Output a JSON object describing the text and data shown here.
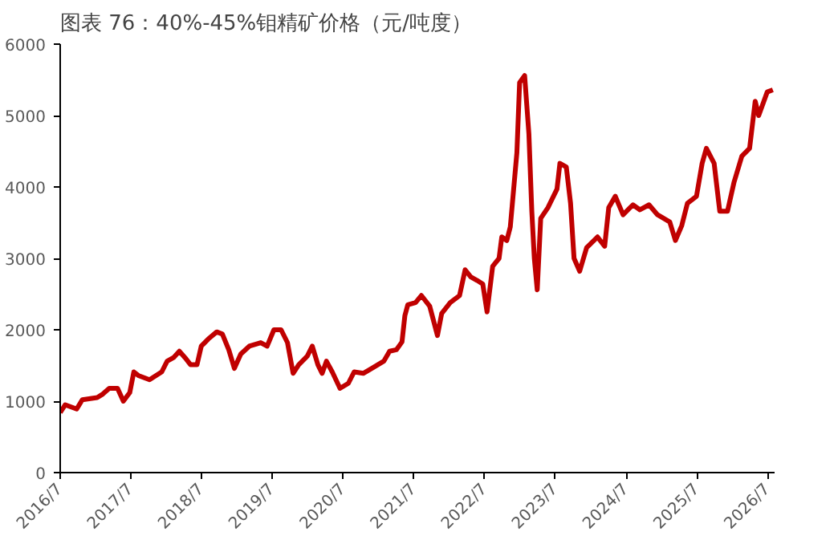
{
  "chart_data": {
    "type": "line",
    "title": "图表 76：40%-45%钼精矿价格（元/吨度）",
    "x": [
      "2016-07-01",
      "2016-07-27",
      "2016-09-24",
      "2016-10-23",
      "2017-01-08",
      "2017-02-06",
      "2017-03-11",
      "2017-04-23",
      "2017-05-23",
      "2017-06-25",
      "2017-07-16",
      "2017-08-08",
      "2017-10-05",
      "2017-12-07",
      "2018-01-04",
      "2018-02-06",
      "2018-03-08",
      "2018-04-06",
      "2018-05-05",
      "2018-06-07",
      "2018-06-29",
      "2018-08-04",
      "2018-09-17",
      "2018-10-16",
      "2018-11-18",
      "2018-12-17",
      "2019-01-19",
      "2019-03-04",
      "2019-05-02",
      "2019-06-04",
      "2019-07-09",
      "2019-08-15",
      "2019-09-17",
      "2019-10-16",
      "2019-11-14",
      "2019-12-28",
      "2020-01-23",
      "2020-02-21",
      "2020-03-14",
      "2020-04-05",
      "2020-05-05",
      "2020-06-14",
      "2020-07-27",
      "2020-08-26",
      "2020-10-12",
      "2020-11-25",
      "2021-01-26",
      "2021-02-25",
      "2021-04-01",
      "2021-04-30",
      "2021-05-15",
      "2021-05-30",
      "2021-07-09",
      "2021-08-08",
      "2021-09-20",
      "2021-10-30",
      "2021-11-21",
      "2022-01-04",
      "2022-02-21",
      "2022-03-22",
      "2022-04-20",
      "2022-05-23",
      "2022-06-21",
      "2022-07-13",
      "2022-08-11",
      "2022-09-13",
      "2022-09-27",
      "2022-10-23",
      "2022-11-10",
      "2022-12-14",
      "2022-12-28",
      "2023-01-23",
      "2023-02-14",
      "2023-03-01",
      "2023-03-14",
      "2023-03-29",
      "2023-04-16",
      "2023-05-23",
      "2023-07-09",
      "2023-07-24",
      "2023-08-26",
      "2023-09-17",
      "2023-10-05",
      "2023-11-03",
      "2023-12-09",
      "2024-02-03",
      "2024-03-11",
      "2024-04-01",
      "2024-05-05",
      "2024-06-14",
      "2024-08-04",
      "2024-09-09",
      "2024-10-26",
      "2024-12-09",
      "2025-02-10",
      "2025-03-11",
      "2025-04-13",
      "2025-05-12",
      "2025-06-28",
      "2025-07-27",
      "2025-08-18",
      "2025-09-27",
      "2025-10-26",
      "2025-12-05",
      "2026-01-08",
      "2026-02-17",
      "2026-03-29",
      "2026-04-27",
      "2026-05-15",
      "2026-06-28",
      "2026-07-27"
    ],
    "series": [
      {
        "color": "#c00000",
        "values": [
          840,
          950,
          890,
          1020,
          1050,
          1100,
          1180,
          1180,
          1000,
          1120,
          1410,
          1360,
          1300,
          1410,
          1560,
          1610,
          1700,
          1610,
          1510,
          1510,
          1770,
          1870,
          1970,
          1940,
          1720,
          1460,
          1660,
          1770,
          1820,
          1770,
          2000,
          2000,
          1820,
          1390,
          1510,
          1630,
          1770,
          1510,
          1390,
          1560,
          1410,
          1180,
          1250,
          1410,
          1390,
          1460,
          1560,
          1700,
          1720,
          1830,
          2200,
          2350,
          2380,
          2480,
          2330,
          1920,
          2230,
          2380,
          2480,
          2840,
          2740,
          2690,
          2640,
          2250,
          2890,
          3000,
          3300,
          3250,
          3440,
          4480,
          5460,
          5560,
          4740,
          3660,
          3000,
          2560,
          3560,
          3710,
          3970,
          4330,
          4280,
          3770,
          3000,
          2820,
          3150,
          3300,
          3170,
          3710,
          3870,
          3610,
          3750,
          3680,
          3750,
          3610,
          3510,
          3250,
          3460,
          3770,
          3870,
          4330,
          4540,
          4330,
          3660,
          3660,
          4070,
          4430,
          4540,
          5200,
          5000,
          5330,
          5360
        ]
      }
    ],
    "xlim": [
      "2016-07-01",
      "2026-08-05"
    ],
    "xticks": [
      {
        "value": "2016-07-01",
        "label": "2016/7"
      },
      {
        "value": "2017-07-01",
        "label": "2017/7"
      },
      {
        "value": "2018-07-01",
        "label": "2018/7"
      },
      {
        "value": "2019-07-01",
        "label": "2019/7"
      },
      {
        "value": "2020-07-01",
        "label": "2020/7"
      },
      {
        "value": "2021-07-01",
        "label": "2021/7"
      },
      {
        "value": "2022-07-01",
        "label": "2022/7"
      },
      {
        "value": "2023-07-01",
        "label": "2023/7"
      },
      {
        "value": "2024-07-01",
        "label": "2024/7"
      },
      {
        "value": "2025-07-01",
        "label": "2025/7"
      },
      {
        "value": "2026-07-01",
        "label": "2026/7"
      }
    ],
    "ylim": [
      0,
      6000
    ],
    "yticks": [
      0,
      1000,
      2000,
      3000,
      4000,
      5000,
      6000
    ],
    "grid": false,
    "marker": "none",
    "line_style": "solid"
  }
}
